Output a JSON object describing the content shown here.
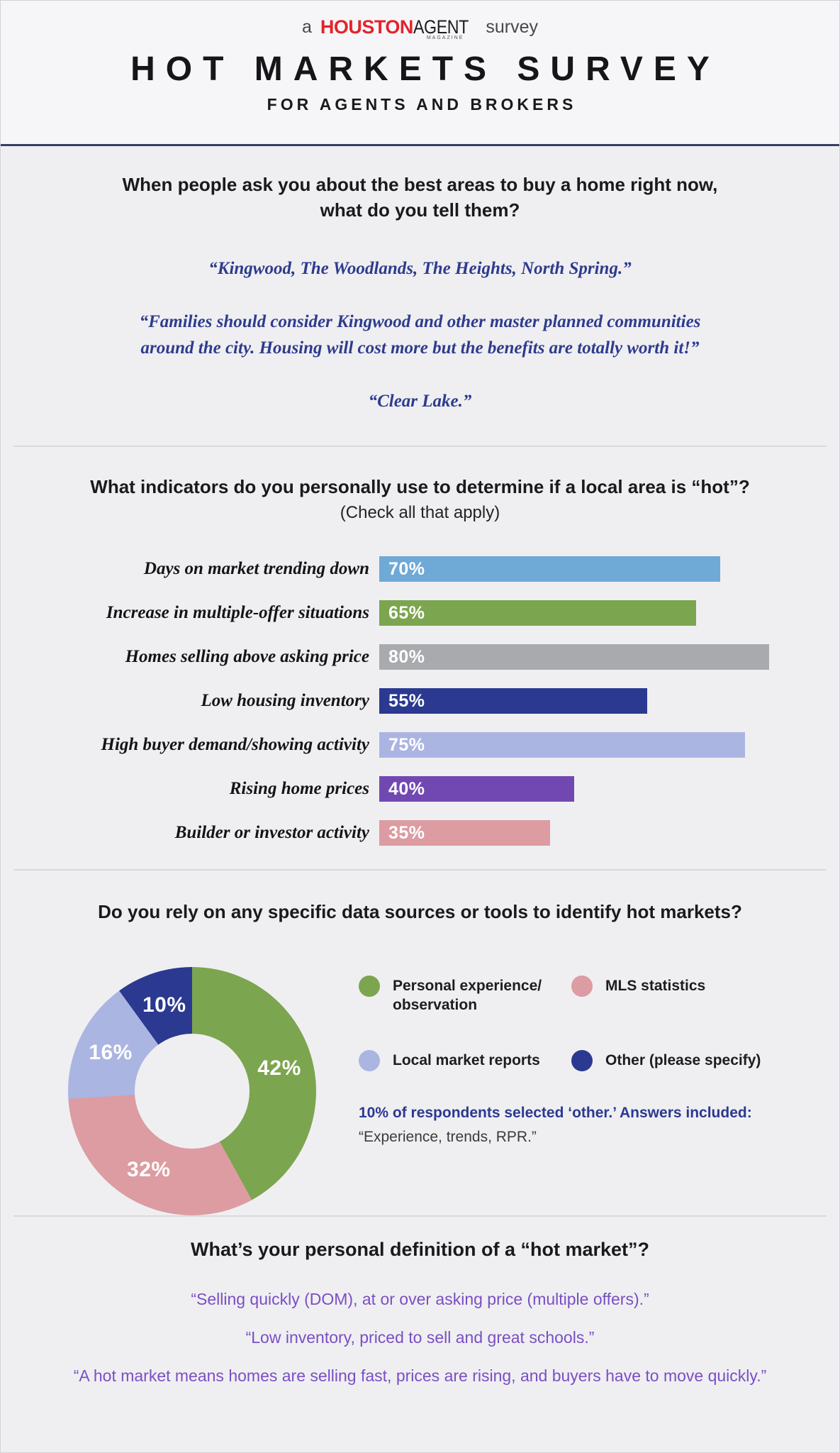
{
  "header": {
    "attribution": {
      "prefix": "a",
      "brand_primary": "HOUSTON",
      "brand_secondary": "AGENT",
      "brand_sub": "MAGAZINE",
      "suffix": "survey"
    },
    "title": "HOT MARKETS SURVEY",
    "subtitle": "FOR AGENTS AND BROKERS",
    "brand_red": "#e3242b"
  },
  "q1": {
    "question": "When people ask you about the best areas to buy a home right now,\nwhat do you tell them?",
    "quotes": [
      "“Kingwood, The Woodlands, The Heights, North Spring.”",
      "“Families should consider Kingwood and other master planned communities\naround the city.  Housing will cost more but the benefits are totally worth it!”",
      "“Clear Lake.”"
    ]
  },
  "q2": {
    "question": "What indicators do you personally use to determine if a local area is “hot”?",
    "instruction": "(Check all that apply)"
  },
  "q3": {
    "question": "Do you rely on any specific data sources or tools to identify hot markets?",
    "legend": [
      {
        "label": "Personal experience/\nobservation"
      },
      {
        "label": "MLS statistics"
      },
      {
        "label": "Local market reports"
      },
      {
        "label": "Other (please specify)"
      }
    ],
    "note_bold": "10% of respondents selected ‘other.’ Answers included:",
    "note_quote": "“Experience, trends, RPR.”"
  },
  "q4": {
    "question": "What’s your personal definition of a “hot market”?",
    "quotes": [
      "“Selling quickly (DOM), at or over asking price (multiple offers).”",
      "“Low inventory, priced to sell and great schools.”",
      "“A hot market means homes are selling fast, prices are rising, and buyers have to move quickly.”"
    ]
  },
  "chart_data": [
    {
      "type": "bar",
      "orientation": "horizontal",
      "title": "What indicators do you personally use to determine if a local area is “hot”?",
      "categories": [
        "Days on market trending down",
        "Increase in multiple-offer situations",
        "Homes selling above asking price",
        "Low housing inventory",
        "High buyer demand/showing activity",
        "Rising home prices",
        "Builder or investor activity"
      ],
      "values": [
        70,
        65,
        80,
        55,
        75,
        40,
        35
      ],
      "value_suffix": "%",
      "colors": [
        "#6fa9d6",
        "#7ca54f",
        "#a8aaad",
        "#2b3990",
        "#abb5e2",
        "#7148b1",
        "#dc9ca1"
      ],
      "xlim": [
        0,
        80
      ],
      "grid": false,
      "value_labels": "inside-start"
    },
    {
      "type": "pie",
      "donut": true,
      "title": "Do you rely on any specific data sources or tools to identify hot markets?",
      "labels": [
        "Personal experience/observation",
        "MLS statistics",
        "Local market reports",
        "Other (please specify)"
      ],
      "values": [
        42,
        32,
        16,
        10
      ],
      "value_suffix": "%",
      "colors": [
        "#7ca54f",
        "#dc9ca1",
        "#abb5e2",
        "#2b3990"
      ],
      "start_angle_deg": 0,
      "direction": "clockwise",
      "legend_position": "right"
    }
  ]
}
